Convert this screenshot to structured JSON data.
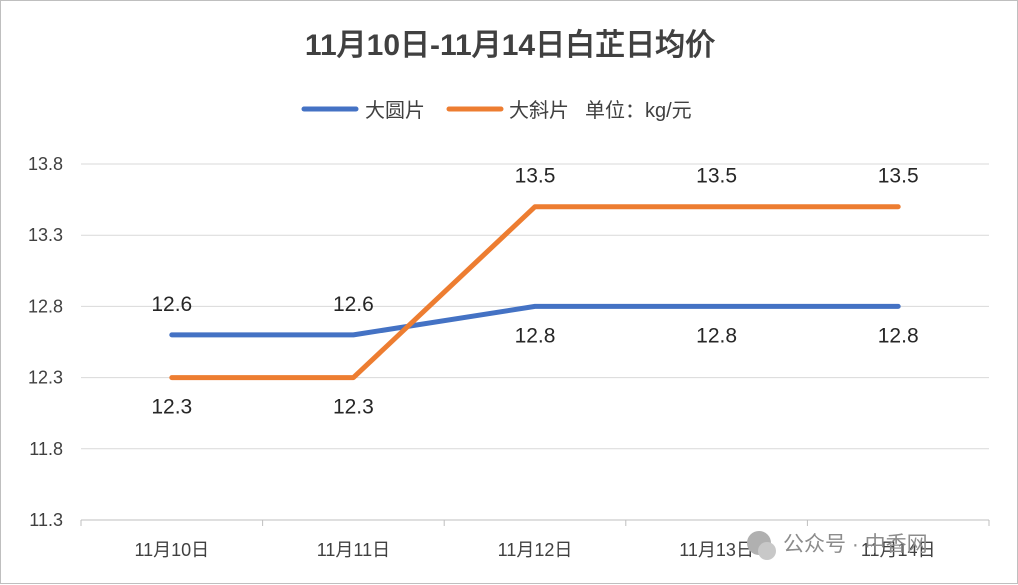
{
  "chart_data": {
    "type": "line",
    "title": "11月10日-11月14日白芷日均价",
    "categories": [
      "11月10日",
      "11月11日",
      "11月12日",
      "11月13日",
      "11月14日"
    ],
    "series": [
      {
        "name": "大圆片",
        "values": [
          12.6,
          12.6,
          12.8,
          12.8,
          12.8
        ],
        "color": "#4472C4"
      },
      {
        "name": "大斜片",
        "values": [
          12.3,
          12.3,
          13.5,
          13.5,
          13.5
        ],
        "color": "#ED7D31"
      }
    ],
    "unit_label": "单位：kg/元",
    "y_ticks": [
      "11.3",
      "11.8",
      "12.3",
      "12.8",
      "13.3",
      "13.8"
    ],
    "ylim": [
      11.3,
      13.8
    ],
    "grid": true,
    "legend_position": "top"
  },
  "watermark": {
    "text": "公众号 · 中香网",
    "icon": "wechat-icon"
  }
}
